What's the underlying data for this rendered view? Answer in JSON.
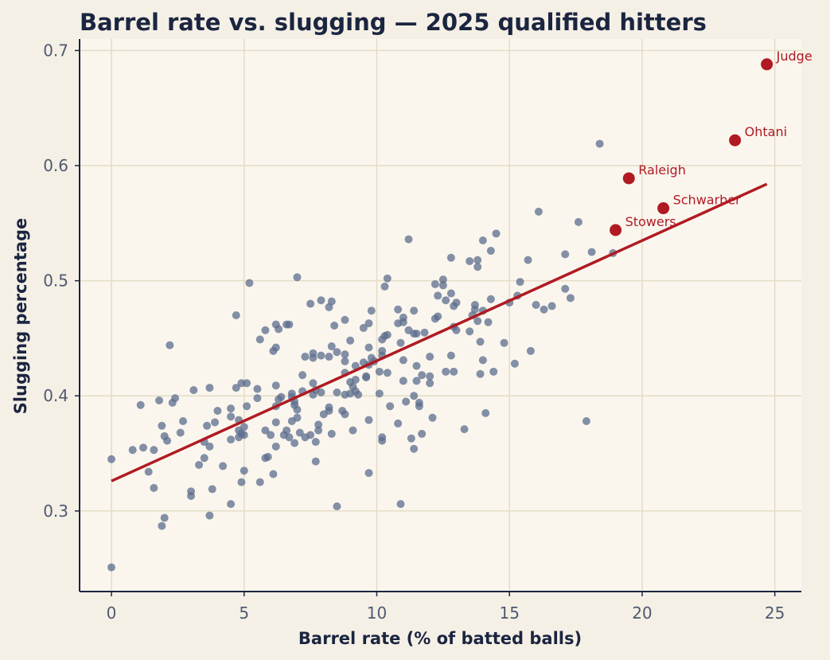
{
  "chart_data": {
    "type": "scatter",
    "title": "Barrel rate vs. slugging — 2025 qualified hitters",
    "xlabel": "Barrel rate (% of batted balls)",
    "ylabel": "Slugging percentage",
    "xlim": [
      -1.2,
      26
    ],
    "ylim": [
      0.23,
      0.71
    ],
    "xticks": [
      0,
      5,
      10,
      15,
      20,
      25
    ],
    "xtick_labels": [
      "0",
      "5",
      "10",
      "15",
      "20",
      "25"
    ],
    "yticks": [
      0.3,
      0.4,
      0.5,
      0.6,
      0.7
    ],
    "ytick_labels": [
      "0.3",
      "0.4",
      "0.5",
      "0.6",
      "0.7"
    ],
    "grid": true,
    "colors": {
      "page_background": "#f5f0e6",
      "plot_background": "#faf6ee",
      "grid": "#e4dcc4",
      "axis": "#1b2540",
      "points": "#5b6c8c",
      "highlight": "#b01a22",
      "trend": "#b01a22"
    },
    "trend_line": {
      "x": [
        0,
        24.7
      ],
      "y": [
        0.326,
        0.584
      ]
    },
    "highlighted": [
      {
        "label": "Judge",
        "x": 24.7,
        "y": 0.688
      },
      {
        "label": "Ohtani",
        "x": 23.5,
        "y": 0.622
      },
      {
        "label": "Raleigh",
        "x": 19.5,
        "y": 0.589
      },
      {
        "label": "Schwarber",
        "x": 20.8,
        "y": 0.563
      },
      {
        "label": "Stowers",
        "x": 19.0,
        "y": 0.544
      }
    ],
    "points": [
      [
        0.0,
        0.251
      ],
      [
        0.0,
        0.345
      ],
      [
        0.8,
        0.353
      ],
      [
        1.1,
        0.392
      ],
      [
        1.2,
        0.355
      ],
      [
        1.4,
        0.334
      ],
      [
        1.6,
        0.353
      ],
      [
        1.6,
        0.32
      ],
      [
        1.8,
        0.396
      ],
      [
        1.9,
        0.374
      ],
      [
        1.9,
        0.287
      ],
      [
        2.0,
        0.365
      ],
      [
        2.0,
        0.294
      ],
      [
        2.1,
        0.361
      ],
      [
        2.2,
        0.444
      ],
      [
        2.3,
        0.394
      ],
      [
        2.4,
        0.398
      ],
      [
        2.6,
        0.368
      ],
      [
        2.7,
        0.378
      ],
      [
        3.0,
        0.317
      ],
      [
        3.0,
        0.313
      ],
      [
        3.1,
        0.405
      ],
      [
        3.3,
        0.34
      ],
      [
        3.5,
        0.36
      ],
      [
        3.5,
        0.346
      ],
      [
        3.6,
        0.374
      ],
      [
        3.7,
        0.356
      ],
      [
        3.7,
        0.407
      ],
      [
        3.7,
        0.296
      ],
      [
        3.8,
        0.319
      ],
      [
        3.9,
        0.377
      ],
      [
        4.0,
        0.387
      ],
      [
        4.2,
        0.339
      ],
      [
        4.5,
        0.389
      ],
      [
        4.5,
        0.382
      ],
      [
        4.5,
        0.362
      ],
      [
        4.5,
        0.306
      ],
      [
        4.7,
        0.47
      ],
      [
        4.7,
        0.407
      ],
      [
        4.8,
        0.379
      ],
      [
        4.8,
        0.37
      ],
      [
        4.8,
        0.364
      ],
      [
        4.9,
        0.411
      ],
      [
        4.9,
        0.367
      ],
      [
        4.9,
        0.325
      ],
      [
        5.0,
        0.373
      ],
      [
        5.0,
        0.366
      ],
      [
        5.0,
        0.335
      ],
      [
        5.1,
        0.411
      ],
      [
        5.1,
        0.391
      ],
      [
        5.2,
        0.498
      ],
      [
        5.5,
        0.406
      ],
      [
        5.5,
        0.398
      ],
      [
        5.6,
        0.449
      ],
      [
        5.6,
        0.325
      ],
      [
        5.8,
        0.457
      ],
      [
        5.8,
        0.37
      ],
      [
        5.8,
        0.346
      ],
      [
        5.9,
        0.347
      ],
      [
        6.0,
        0.366
      ],
      [
        6.1,
        0.439
      ],
      [
        6.1,
        0.332
      ],
      [
        6.2,
        0.462
      ],
      [
        6.2,
        0.442
      ],
      [
        6.2,
        0.409
      ],
      [
        6.2,
        0.391
      ],
      [
        6.2,
        0.377
      ],
      [
        6.2,
        0.356
      ],
      [
        6.3,
        0.458
      ],
      [
        6.3,
        0.397
      ],
      [
        6.4,
        0.399
      ],
      [
        6.5,
        0.366
      ],
      [
        6.6,
        0.462
      ],
      [
        6.6,
        0.37
      ],
      [
        6.7,
        0.462
      ],
      [
        6.7,
        0.364
      ],
      [
        6.8,
        0.402
      ],
      [
        6.8,
        0.399
      ],
      [
        6.8,
        0.378
      ],
      [
        6.9,
        0.395
      ],
      [
        6.9,
        0.392
      ],
      [
        6.9,
        0.359
      ],
      [
        7.0,
        0.503
      ],
      [
        7.0,
        0.388
      ],
      [
        7.0,
        0.381
      ],
      [
        7.1,
        0.368
      ],
      [
        7.2,
        0.418
      ],
      [
        7.2,
        0.404
      ],
      [
        7.3,
        0.434
      ],
      [
        7.3,
        0.364
      ],
      [
        7.5,
        0.48
      ],
      [
        7.5,
        0.366
      ],
      [
        7.6,
        0.437
      ],
      [
        7.6,
        0.433
      ],
      [
        7.6,
        0.411
      ],
      [
        7.6,
        0.401
      ],
      [
        7.7,
        0.405
      ],
      [
        7.7,
        0.36
      ],
      [
        7.7,
        0.343
      ],
      [
        7.8,
        0.375
      ],
      [
        7.8,
        0.37
      ],
      [
        7.9,
        0.483
      ],
      [
        7.9,
        0.435
      ],
      [
        7.9,
        0.403
      ],
      [
        8.0,
        0.384
      ],
      [
        8.2,
        0.477
      ],
      [
        8.2,
        0.434
      ],
      [
        8.2,
        0.39
      ],
      [
        8.2,
        0.387
      ],
      [
        8.3,
        0.482
      ],
      [
        8.3,
        0.443
      ],
      [
        8.3,
        0.367
      ],
      [
        8.4,
        0.461
      ],
      [
        8.5,
        0.438
      ],
      [
        8.5,
        0.403
      ],
      [
        8.5,
        0.304
      ],
      [
        8.7,
        0.387
      ],
      [
        8.8,
        0.466
      ],
      [
        8.8,
        0.436
      ],
      [
        8.8,
        0.43
      ],
      [
        8.8,
        0.42
      ],
      [
        8.8,
        0.401
      ],
      [
        8.8,
        0.384
      ],
      [
        9.0,
        0.448
      ],
      [
        9.0,
        0.412
      ],
      [
        9.0,
        0.402
      ],
      [
        9.1,
        0.408
      ],
      [
        9.1,
        0.37
      ],
      [
        9.2,
        0.426
      ],
      [
        9.2,
        0.414
      ],
      [
        9.2,
        0.404
      ],
      [
        9.3,
        0.401
      ],
      [
        9.5,
        0.459
      ],
      [
        9.5,
        0.429
      ],
      [
        9.6,
        0.417
      ],
      [
        9.6,
        0.416
      ],
      [
        9.7,
        0.463
      ],
      [
        9.7,
        0.442
      ],
      [
        9.7,
        0.427
      ],
      [
        9.7,
        0.379
      ],
      [
        9.7,
        0.333
      ],
      [
        9.8,
        0.474
      ],
      [
        9.8,
        0.433
      ],
      [
        9.9,
        0.43
      ],
      [
        10.1,
        0.421
      ],
      [
        10.1,
        0.402
      ],
      [
        10.2,
        0.449
      ],
      [
        10.2,
        0.439
      ],
      [
        10.2,
        0.435
      ],
      [
        10.2,
        0.364
      ],
      [
        10.2,
        0.361
      ],
      [
        10.3,
        0.495
      ],
      [
        10.3,
        0.452
      ],
      [
        10.4,
        0.502
      ],
      [
        10.4,
        0.453
      ],
      [
        10.4,
        0.42
      ],
      [
        10.5,
        0.391
      ],
      [
        10.8,
        0.475
      ],
      [
        10.8,
        0.463
      ],
      [
        10.8,
        0.376
      ],
      [
        10.9,
        0.446
      ],
      [
        10.9,
        0.306
      ],
      [
        11.0,
        0.468
      ],
      [
        11.0,
        0.464
      ],
      [
        11.0,
        0.431
      ],
      [
        11.0,
        0.413
      ],
      [
        11.1,
        0.395
      ],
      [
        11.2,
        0.536
      ],
      [
        11.2,
        0.457
      ],
      [
        11.3,
        0.363
      ],
      [
        11.4,
        0.474
      ],
      [
        11.4,
        0.454
      ],
      [
        11.4,
        0.4
      ],
      [
        11.4,
        0.354
      ],
      [
        11.5,
        0.454
      ],
      [
        11.5,
        0.426
      ],
      [
        11.5,
        0.413
      ],
      [
        11.6,
        0.394
      ],
      [
        11.6,
        0.391
      ],
      [
        11.7,
        0.418
      ],
      [
        11.7,
        0.367
      ],
      [
        11.8,
        0.455
      ],
      [
        12.0,
        0.434
      ],
      [
        12.0,
        0.417
      ],
      [
        12.0,
        0.411
      ],
      [
        12.1,
        0.381
      ],
      [
        12.2,
        0.497
      ],
      [
        12.2,
        0.467
      ],
      [
        12.3,
        0.487
      ],
      [
        12.3,
        0.469
      ],
      [
        12.5,
        0.501
      ],
      [
        12.5,
        0.496
      ],
      [
        12.6,
        0.483
      ],
      [
        12.6,
        0.421
      ],
      [
        12.8,
        0.52
      ],
      [
        12.8,
        0.489
      ],
      [
        12.8,
        0.435
      ],
      [
        12.9,
        0.478
      ],
      [
        12.9,
        0.46
      ],
      [
        12.9,
        0.421
      ],
      [
        13.0,
        0.481
      ],
      [
        13.0,
        0.457
      ],
      [
        13.3,
        0.371
      ],
      [
        13.5,
        0.517
      ],
      [
        13.5,
        0.456
      ],
      [
        13.6,
        0.47
      ],
      [
        13.7,
        0.479
      ],
      [
        13.7,
        0.475
      ],
      [
        13.8,
        0.518
      ],
      [
        13.8,
        0.512
      ],
      [
        13.8,
        0.465
      ],
      [
        13.9,
        0.447
      ],
      [
        13.9,
        0.419
      ],
      [
        14.0,
        0.535
      ],
      [
        14.0,
        0.474
      ],
      [
        14.0,
        0.431
      ],
      [
        14.1,
        0.385
      ],
      [
        14.2,
        0.464
      ],
      [
        14.3,
        0.526
      ],
      [
        14.3,
        0.484
      ],
      [
        14.4,
        0.421
      ],
      [
        14.5,
        0.541
      ],
      [
        14.8,
        0.446
      ],
      [
        15.0,
        0.481
      ],
      [
        15.2,
        0.428
      ],
      [
        15.3,
        0.487
      ],
      [
        15.4,
        0.499
      ],
      [
        15.7,
        0.518
      ],
      [
        15.8,
        0.439
      ],
      [
        16.0,
        0.479
      ],
      [
        16.1,
        0.56
      ],
      [
        16.3,
        0.475
      ],
      [
        16.6,
        0.478
      ],
      [
        17.1,
        0.493
      ],
      [
        17.1,
        0.523
      ],
      [
        17.3,
        0.485
      ],
      [
        17.6,
        0.551
      ],
      [
        17.9,
        0.378
      ],
      [
        18.1,
        0.525
      ],
      [
        18.4,
        0.619
      ],
      [
        18.9,
        0.524
      ]
    ]
  }
}
